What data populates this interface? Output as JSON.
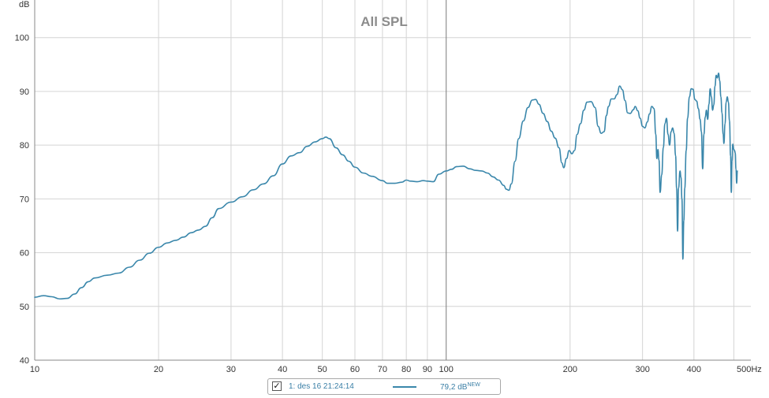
{
  "chart_data": {
    "type": "line",
    "title": "All SPL",
    "ylabel": "dB",
    "x_unit_label": "500Hz",
    "x_scale": "log",
    "xlim": [
      10,
      550
    ],
    "ylim": [
      40,
      107
    ],
    "y_ticks": [
      40,
      50,
      60,
      70,
      80,
      90,
      100
    ],
    "x_ticks": [
      {
        "value": 10,
        "label": "10"
      },
      {
        "value": 20,
        "label": "20"
      },
      {
        "value": 30,
        "label": "30"
      },
      {
        "value": 40,
        "label": "40"
      },
      {
        "value": 50,
        "label": "50"
      },
      {
        "value": 60,
        "label": "60"
      },
      {
        "value": 70,
        "label": "70"
      },
      {
        "value": 80,
        "label": "80"
      },
      {
        "value": 90,
        "label": "90"
      },
      {
        "value": 100,
        "label": "100"
      },
      {
        "value": 200,
        "label": "200"
      },
      {
        "value": 300,
        "label": "300"
      },
      {
        "value": 400,
        "label": "400"
      }
    ],
    "x_major_gridlines": [
      10,
      100
    ],
    "grid": true,
    "series": [
      {
        "color": "#3a87ab",
        "points": [
          [
            10,
            51.7
          ],
          [
            10.5,
            52.0
          ],
          [
            11,
            51.8
          ],
          [
            11.5,
            51.4
          ],
          [
            12,
            51.5
          ],
          [
            12.5,
            52.3
          ],
          [
            13,
            53.5
          ],
          [
            13.5,
            54.6
          ],
          [
            14,
            55.3
          ],
          [
            15,
            55.8
          ],
          [
            16,
            56.2
          ],
          [
            17,
            57.3
          ],
          [
            18,
            58.6
          ],
          [
            19,
            59.9
          ],
          [
            20,
            61.0
          ],
          [
            21,
            61.8
          ],
          [
            22,
            62.3
          ],
          [
            23,
            62.9
          ],
          [
            24,
            63.7
          ],
          [
            25,
            64.2
          ],
          [
            26,
            64.9
          ],
          [
            27,
            66.5
          ],
          [
            28,
            68.2
          ],
          [
            30,
            69.4
          ],
          [
            32,
            70.4
          ],
          [
            34,
            71.7
          ],
          [
            36,
            72.8
          ],
          [
            38,
            74.3
          ],
          [
            40,
            76.5
          ],
          [
            42,
            78.0
          ],
          [
            44,
            78.6
          ],
          [
            46,
            79.8
          ],
          [
            48,
            80.6
          ],
          [
            50,
            81.2
          ],
          [
            51,
            81.5
          ],
          [
            52,
            81.2
          ],
          [
            54,
            79.5
          ],
          [
            56,
            78.2
          ],
          [
            58,
            77.0
          ],
          [
            60,
            75.9
          ],
          [
            63,
            74.8
          ],
          [
            66,
            74.2
          ],
          [
            70,
            73.4
          ],
          [
            72,
            72.9
          ],
          [
            75,
            72.9
          ],
          [
            78,
            73.1
          ],
          [
            80,
            73.5
          ],
          [
            82,
            73.3
          ],
          [
            85,
            73.2
          ],
          [
            88,
            73.4
          ],
          [
            90,
            73.3
          ],
          [
            93,
            73.2
          ],
          [
            96,
            74.6
          ],
          [
            100,
            75.2
          ],
          [
            103,
            75.5
          ],
          [
            106,
            76.0
          ],
          [
            110,
            76.1
          ],
          [
            114,
            75.6
          ],
          [
            118,
            75.3
          ],
          [
            122,
            75.2
          ],
          [
            126,
            74.8
          ],
          [
            130,
            74.1
          ],
          [
            134,
            73.5
          ],
          [
            138,
            72.5
          ],
          [
            140,
            71.8
          ],
          [
            142,
            71.6
          ],
          [
            144,
            72.8
          ],
          [
            147,
            77.0
          ],
          [
            150,
            81.2
          ],
          [
            154,
            84.5
          ],
          [
            158,
            87.0
          ],
          [
            162,
            88.4
          ],
          [
            165,
            88.5
          ],
          [
            168,
            87.6
          ],
          [
            172,
            85.9
          ],
          [
            176,
            84.4
          ],
          [
            180,
            82.6
          ],
          [
            184,
            81.3
          ],
          [
            188,
            79.5
          ],
          [
            191,
            76.7
          ],
          [
            193,
            75.8
          ],
          [
            196,
            77.5
          ],
          [
            199,
            79.0
          ],
          [
            202,
            78.4
          ],
          [
            205,
            79.0
          ],
          [
            208,
            82.0
          ],
          [
            212,
            84.0
          ],
          [
            216,
            86.5
          ],
          [
            220,
            88.0
          ],
          [
            225,
            88.1
          ],
          [
            230,
            87.0
          ],
          [
            234,
            83.5
          ],
          [
            238,
            82.2
          ],
          [
            242,
            82.5
          ],
          [
            245,
            85.5
          ],
          [
            248,
            87.2
          ],
          [
            252,
            88.6
          ],
          [
            256,
            88.6
          ],
          [
            260,
            89.4
          ],
          [
            264,
            91.0
          ],
          [
            268,
            90.3
          ],
          [
            272,
            88.3
          ],
          [
            276,
            86.0
          ],
          [
            280,
            85.9
          ],
          [
            285,
            86.6
          ],
          [
            288,
            87.2
          ],
          [
            292,
            86.4
          ],
          [
            296,
            85.0
          ],
          [
            300,
            83.5
          ],
          [
            304,
            83.2
          ],
          [
            308,
            84.3
          ],
          [
            312,
            85.8
          ],
          [
            316,
            87.2
          ],
          [
            320,
            86.8
          ],
          [
            323,
            82.0
          ],
          [
            325,
            77.5
          ],
          [
            327,
            79.2
          ],
          [
            329,
            77.2
          ],
          [
            331,
            71.2
          ],
          [
            334,
            74.5
          ],
          [
            337,
            79.5
          ],
          [
            340,
            84.0
          ],
          [
            343,
            85.0
          ],
          [
            346,
            82.0
          ],
          [
            349,
            80.0
          ],
          [
            352,
            82.5
          ],
          [
            355,
            83.2
          ],
          [
            358,
            82.2
          ],
          [
            361,
            78.0
          ],
          [
            363,
            72.0
          ],
          [
            365,
            64.0
          ],
          [
            367,
            72.0
          ],
          [
            370,
            75.2
          ],
          [
            372,
            74.0
          ],
          [
            374,
            70.0
          ],
          [
            376,
            58.8
          ],
          [
            378,
            66.0
          ],
          [
            380,
            72.0
          ],
          [
            383,
            79.0
          ],
          [
            386,
            85.0
          ],
          [
            390,
            89.0
          ],
          [
            394,
            90.5
          ],
          [
            398,
            90.4
          ],
          [
            402,
            88.5
          ],
          [
            406,
            88.2
          ],
          [
            410,
            86.8
          ],
          [
            414,
            84.8
          ],
          [
            417,
            82.5
          ],
          [
            420,
            75.6
          ],
          [
            423,
            82.0
          ],
          [
            426,
            85.2
          ],
          [
            429,
            86.5
          ],
          [
            432,
            84.8
          ],
          [
            435,
            87.6
          ],
          [
            438,
            90.5
          ],
          [
            441,
            89.0
          ],
          [
            444,
            86.5
          ],
          [
            447,
            87.5
          ],
          [
            450,
            91.0
          ],
          [
            453,
            93.0
          ],
          [
            456,
            92.5
          ],
          [
            459,
            93.4
          ],
          [
            462,
            92.0
          ],
          [
            465,
            89.0
          ],
          [
            468,
            86.0
          ],
          [
            471,
            82.0
          ],
          [
            473,
            80.3
          ],
          [
            476,
            84.0
          ],
          [
            479,
            88.0
          ],
          [
            482,
            89.0
          ],
          [
            485,
            88.0
          ],
          [
            488,
            84.5
          ],
          [
            491,
            78.0
          ],
          [
            493,
            71.2
          ],
          [
            495,
            77.0
          ],
          [
            497,
            80.2
          ],
          [
            500,
            79.2
          ],
          [
            502,
            79.0
          ],
          [
            504,
            78.6
          ],
          [
            506,
            75.5
          ],
          [
            508,
            72.9
          ],
          [
            510,
            75.2
          ]
        ]
      }
    ]
  },
  "legend": {
    "checkbox_mark": "✓",
    "series_label": "1: des 16 21:24:14",
    "value_text": "79,2 dB",
    "value_superscript": "NEW"
  }
}
